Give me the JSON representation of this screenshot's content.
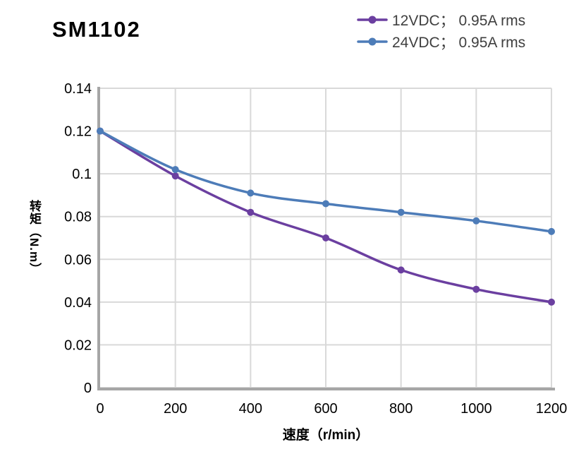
{
  "title": "SM1102",
  "legend": {
    "items": [
      {
        "label": "12VDC；  0.95A rms",
        "color": "#6B3FA0"
      },
      {
        "label": "24VDC；  0.95A rms",
        "color": "#4D7CB8"
      }
    ]
  },
  "chart_data": {
    "type": "line",
    "title": "SM1102",
    "x": [
      0,
      200,
      400,
      600,
      800,
      1000,
      1200
    ],
    "series": [
      {
        "name": "12VDC；  0.95A rms",
        "color": "#6B3FA0",
        "values": [
          0.12,
          0.099,
          0.082,
          0.07,
          0.055,
          0.046,
          0.04
        ]
      },
      {
        "name": "24VDC；  0.95A rms",
        "color": "#4D7CB8",
        "values": [
          0.12,
          0.102,
          0.091,
          0.086,
          0.082,
          0.078,
          0.073
        ]
      }
    ],
    "xlabel": "速度（r/min）",
    "ylabel": "转矩（N.m）",
    "xlim": [
      0,
      1200
    ],
    "ylim": [
      0,
      0.14
    ],
    "x_ticks": [
      0,
      200,
      400,
      600,
      800,
      1000,
      1200
    ],
    "x_tick_labels": [
      "0",
      "200",
      "400",
      "600",
      "800",
      "1000",
      "1200"
    ],
    "y_ticks": [
      0,
      0.02,
      0.04,
      0.06,
      0.08,
      0.1,
      0.12,
      0.14
    ],
    "y_tick_labels": [
      "0",
      "0.02",
      "0.04",
      "0.06",
      "0.08",
      "0.1",
      "0.12",
      "0.14"
    ],
    "grid": true,
    "smooth_lines": true,
    "legend_position": "top-right",
    "grid_color": "#D9D9D9",
    "axis_color": "#A6A6A6",
    "background_color": "#FFFFFF"
  }
}
